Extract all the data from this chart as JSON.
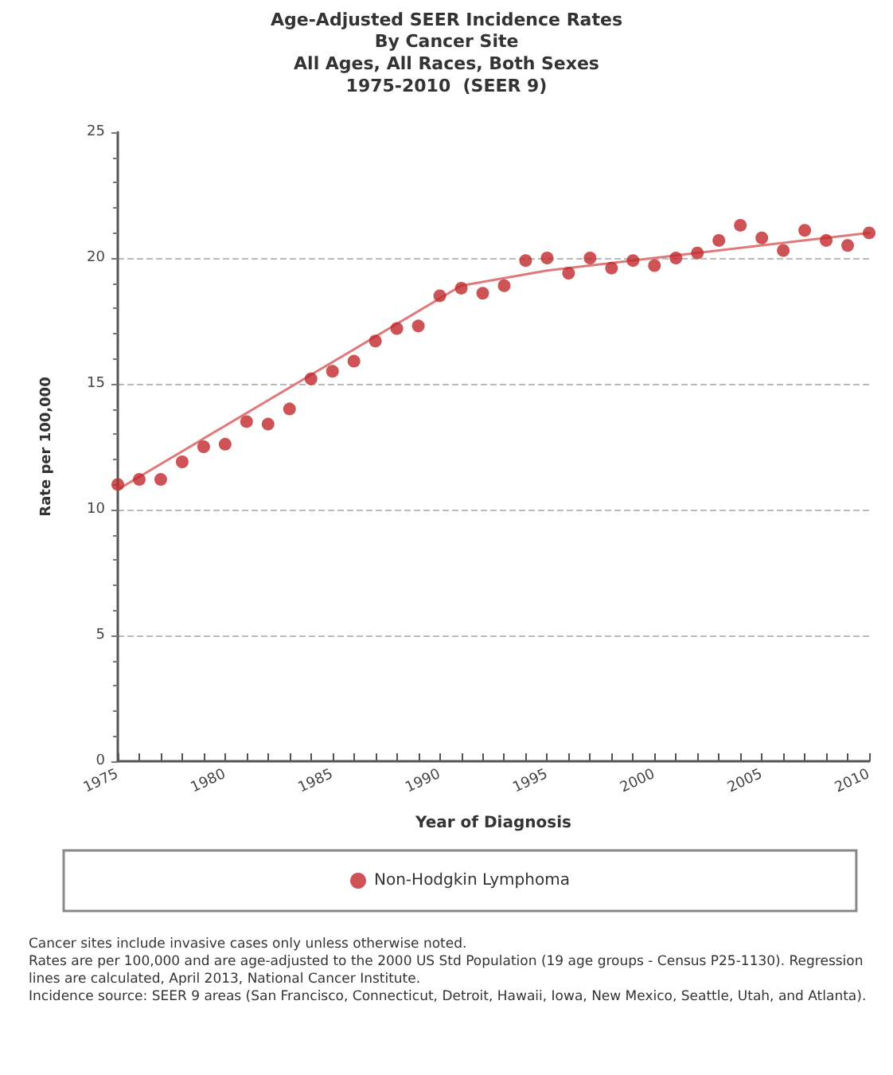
{
  "chart_data": {
    "type": "scatter",
    "title": "Age-Adjusted SEER Incidence Rates",
    "subtitle": "By Cancer Site\nAll Ages, All Races, Both Sexes\n1975-2010  (SEER 9)",
    "xlabel": "Year of Diagnosis",
    "ylabel": "Rate per 100,000",
    "x": [
      1975,
      1976,
      1977,
      1978,
      1979,
      1980,
      1981,
      1982,
      1983,
      1984,
      1985,
      1986,
      1987,
      1988,
      1989,
      1990,
      1991,
      1992,
      1993,
      1994,
      1995,
      1996,
      1997,
      1998,
      1999,
      2000,
      2001,
      2002,
      2003,
      2004,
      2005,
      2006,
      2007,
      2008,
      2009,
      2010
    ],
    "series": [
      {
        "name": "Non-Hodgkin Lymphoma",
        "marker": "circle",
        "color": "#c0282d",
        "values": [
          11.0,
          11.2,
          11.2,
          11.9,
          12.5,
          12.6,
          13.5,
          13.4,
          14.0,
          15.2,
          15.5,
          15.9,
          16.7,
          17.2,
          17.3,
          18.5,
          18.8,
          18.6,
          18.9,
          19.9,
          20.0,
          19.4,
          20.0,
          19.6,
          19.9,
          19.7,
          20.0,
          20.2,
          20.7,
          21.3,
          20.8,
          20.3,
          21.1,
          20.7,
          20.5,
          21.0
        ]
      },
      {
        "type": "line",
        "marker": "none",
        "color": "#e07a7a",
        "x": [
          1975,
          1991,
          1995,
          2010
        ],
        "values": [
          10.8,
          18.9,
          19.5,
          21.0
        ]
      }
    ],
    "xlim": [
      1975,
      2010
    ],
    "xticks": [
      1975,
      1980,
      1985,
      1990,
      1995,
      2000,
      2005,
      2010
    ],
    "ylim": [
      0,
      25
    ],
    "yticks": [
      0,
      5,
      10,
      15,
      20,
      25
    ],
    "grid": "y",
    "legend": "bottom",
    "annotations": [
      "Cancer sites include invasive cases only unless otherwise noted.",
      "Rates are per 100,000 and are age-adjusted to the 2000 US Std Population (19 age groups - Census P25-1130). Regression lines are calculated, April 2013, National Cancer Institute.",
      "Incidence source: SEER 9 areas (San Francisco, Connecticut, Detroit, Hawaii, Iowa, New Mexico, Seattle, Utah, and Atlanta)."
    ]
  }
}
